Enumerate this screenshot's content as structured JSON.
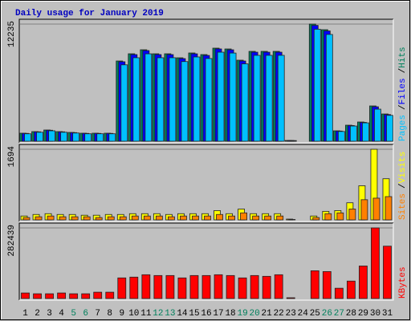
{
  "chart_data": {
    "type": "bar",
    "title": "Daily usage for January 2019",
    "title_color": "#0000c0",
    "label_separator": "/",
    "categories": [
      "1",
      "2",
      "3",
      "4",
      "5",
      "6",
      "7",
      "8",
      "9",
      "10",
      "11",
      "12",
      "13",
      "14",
      "15",
      "16",
      "17",
      "18",
      "19",
      "20",
      "21",
      "22",
      "23",
      "24",
      "25",
      "26",
      "27",
      "28",
      "29",
      "30",
      "31"
    ],
    "category_colors": [
      "#000000",
      "#000000",
      "#000000",
      "#000000",
      "#00805c",
      "#00805c",
      "#000000",
      "#000000",
      "#000000",
      "#000000",
      "#000000",
      "#00805c",
      "#00805c",
      "#000000",
      "#000000",
      "#000000",
      "#000000",
      "#000000",
      "#00805c",
      "#00805c",
      "#000000",
      "#000000",
      "#000000",
      "#000000",
      "#000000",
      "#00805c",
      "#00805c",
      "#000000",
      "#000000",
      "#000000",
      "#000000"
    ],
    "panels": [
      {
        "ylim": [
          0,
          12235
        ],
        "yticks": [
          12235
        ],
        "series": [
          {
            "name": "Hits",
            "color": "#00805c",
            "values": [
              838,
              1006,
              1173,
              1006,
              922,
              838,
              838,
              838,
              8380,
              9134,
              9553,
              9134,
              9134,
              8715,
              9218,
              9050,
              9721,
              9637,
              8464,
              9386,
              9386,
              9386,
              84,
              0,
              12235,
              11648,
              1089,
              1676,
              2011,
              3687,
              2849
            ]
          },
          {
            "name": "Files",
            "color": "#0000ff",
            "values": [
              820,
              985,
              1150,
              985,
              900,
              820,
              820,
              820,
              8300,
              9050,
              9470,
              9050,
              9050,
              8630,
              9130,
              8960,
              9640,
              9550,
              8380,
              9300,
              9300,
              9300,
              80,
              0,
              12100,
              11520,
              1065,
              1640,
              1970,
              3600,
              2790
            ]
          },
          {
            "name": "Pages",
            "color": "#00c0ff",
            "values": [
              780,
              940,
              1090,
              940,
              860,
              780,
              780,
              780,
              7980,
              8720,
              9130,
              8720,
              8720,
              8320,
              8800,
              8640,
              9300,
              9210,
              8080,
              8970,
              8970,
              8970,
              70,
              0,
              11700,
              11150,
              1020,
              1590,
              1920,
              3350,
              2700
            ]
          }
        ]
      },
      {
        "ylim": [
          0,
          1694
        ],
        "yticks": [
          1694
        ],
        "series": [
          {
            "name": "Visits",
            "color": "#ffff00",
            "values": [
              93,
              130,
              149,
              130,
              130,
              112,
              112,
              130,
              130,
              149,
              149,
              149,
              130,
              149,
              149,
              149,
              223,
              149,
              260,
              149,
              149,
              149,
              19,
              0,
              93,
              205,
              223,
              410,
              819,
              1694,
              987
            ]
          },
          {
            "name": "Sites",
            "color": "#ff8000",
            "values": [
              56,
              75,
              93,
              75,
              75,
              75,
              56,
              75,
              75,
              93,
              93,
              93,
              75,
              93,
              93,
              93,
              130,
              93,
              168,
              93,
              93,
              93,
              10,
              0,
              56,
              149,
              168,
              260,
              484,
              521,
              558
            ]
          }
        ]
      },
      {
        "ylim": [
          0,
          282439
        ],
        "yticks": [
          282439
        ],
        "series": [
          {
            "name": "KBytes",
            "color": "#ff0000",
            "values": [
              22214,
              19040,
              19040,
              22214,
              19040,
              19040,
              25388,
              25388,
              82508,
              85682,
              95203,
              92030,
              92030,
              82508,
              92030,
              92030,
              95203,
              92030,
              82508,
              92030,
              88856,
              95203,
              3173,
              0,
              111071,
              107897,
              41254,
              69816,
              130113,
              282439,
              209453
            ]
          }
        ]
      }
    ]
  }
}
